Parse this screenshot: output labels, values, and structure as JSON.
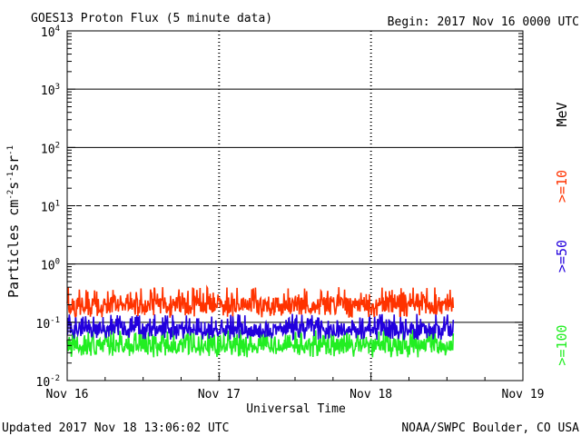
{
  "header": {
    "title": "GOES13 Proton Flux (5 minute data)",
    "begin": "Begin: 2017 Nov 16 0000 UTC"
  },
  "footer": {
    "updated": "Updated 2017 Nov 18 13:06:02 UTC",
    "credit": "NOAA/SWPC Boulder, CO USA"
  },
  "chart_data": {
    "type": "line",
    "title": "GOES13 Proton Flux (5 minute data)",
    "xlabel": "Universal Time",
    "ylabel": "Particles cm-2 s-1 sr-1",
    "yscale": "log",
    "ylim": [
      0.01,
      10000
    ],
    "xlim_days": [
      0,
      3
    ],
    "x_ticks": [
      "Nov 16",
      "Nov 17",
      "Nov 18",
      "Nov 19"
    ],
    "y_ticks": [
      {
        "base": "10",
        "exp": "-2"
      },
      {
        "base": "10",
        "exp": "-1"
      },
      {
        "base": "10",
        "exp": "0"
      },
      {
        "base": "10",
        "exp": "1"
      },
      {
        "base": "10",
        "exp": "2"
      },
      {
        "base": "10",
        "exp": "3"
      },
      {
        "base": "10",
        "exp": "4"
      }
    ],
    "threshold_levels": [
      0.1,
      1,
      10,
      100,
      1000
    ],
    "dashed_level": 10,
    "data_end_day": 2.54,
    "legend_unit": "MeV",
    "series": [
      {
        "name": ">=10",
        "color": "#ff3300",
        "center": 0.2,
        "low": 0.12,
        "high": 0.4
      },
      {
        "name": ">=50",
        "color": "#2200dd",
        "center": 0.075,
        "low": 0.05,
        "high": 0.14
      },
      {
        "name": ">=100",
        "color": "#22ee22",
        "center": 0.04,
        "low": 0.025,
        "high": 0.075
      }
    ]
  }
}
